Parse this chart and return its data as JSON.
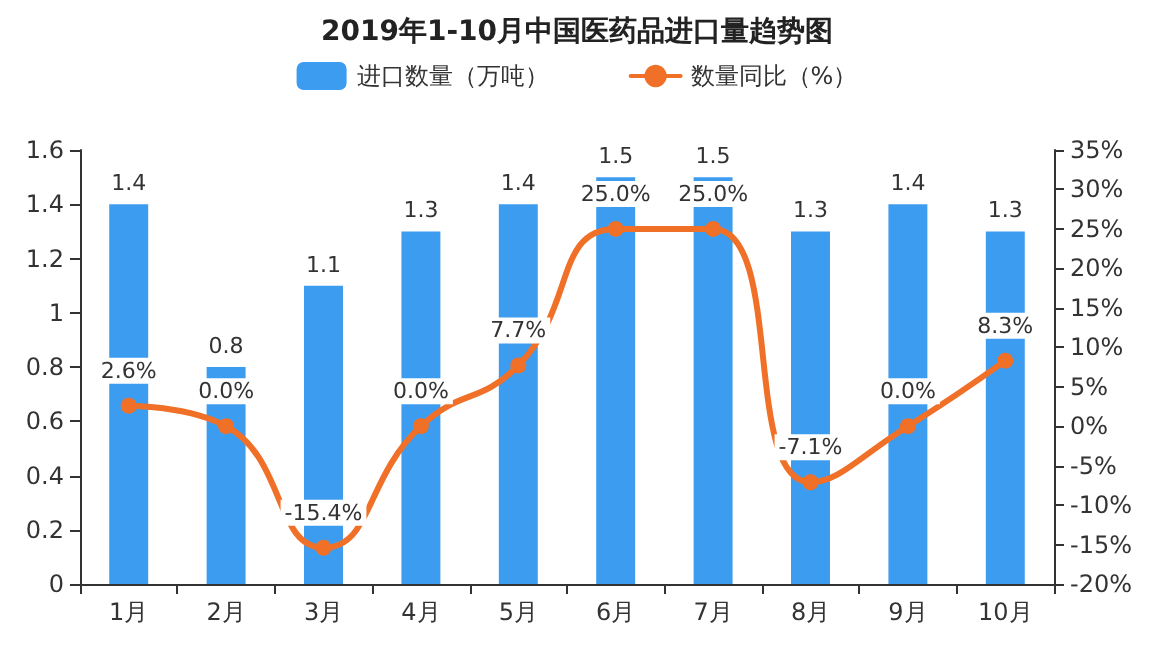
{
  "chart_data": {
    "type": "bar",
    "title": "2019年1-10月中国医药品进口量趋势图",
    "categories": [
      "1月",
      "2月",
      "3月",
      "4月",
      "5月",
      "6月",
      "7月",
      "8月",
      "9月",
      "10月"
    ],
    "series": [
      {
        "name": "进口数量（万吨）",
        "color": "#3c9cf0",
        "values": [
          1.4,
          0.8,
          1.1,
          1.3,
          1.4,
          1.5,
          1.5,
          1.3,
          1.4,
          1.3
        ]
      },
      {
        "name": "数量同比（%）",
        "type": "line",
        "axis": "y2",
        "color": "#f07028",
        "marker": "circle",
        "values": [
          2.6,
          0.0,
          -15.4,
          0.0,
          7.7,
          25.0,
          25.0,
          -7.1,
          0.0,
          8.3
        ],
        "value_labels": [
          "2.6%",
          "0.0%",
          "-15.4%",
          "0.0%",
          "7.7%",
          "25.0%",
          "25.0%",
          "-7.1%",
          "0.0%",
          "8.3%"
        ]
      }
    ],
    "data_labels": true,
    "ylim": [
      0,
      1.6
    ],
    "yticks": [
      0,
      0.2,
      0.4,
      0.6,
      0.8,
      1,
      1.2,
      1.4,
      1.6
    ],
    "y2lim": [
      -20,
      35
    ],
    "y2ticks": [
      {
        "value": -20,
        "label": "-20%"
      },
      {
        "value": -15,
        "label": "-15%"
      },
      {
        "value": -10,
        "label": "-10%"
      },
      {
        "value": -5,
        "label": "-5%"
      },
      {
        "value": 0,
        "label": "0%"
      },
      {
        "value": 5,
        "label": "5%"
      },
      {
        "value": 10,
        "label": "10%"
      },
      {
        "value": 15,
        "label": "15%"
      },
      {
        "value": 20,
        "label": "20%"
      },
      {
        "value": 25,
        "label": "25%"
      },
      {
        "value": 30,
        "label": "30%"
      },
      {
        "value": 35,
        "label": "35%"
      }
    ],
    "legend": "top",
    "grid": false
  }
}
